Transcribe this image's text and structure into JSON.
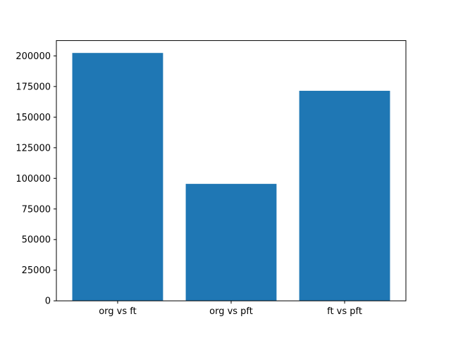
{
  "figure": {
    "background": "#ffffff"
  },
  "chart_data": {
    "type": "bar",
    "categories": [
      "org vs ft",
      "org vs pft",
      "ft vs pft"
    ],
    "values": [
      202400,
      95500,
      171500
    ],
    "title": "",
    "xlabel": "",
    "ylabel": "",
    "ylim": [
      0,
      212520
    ],
    "yticks": [
      0,
      25000,
      50000,
      75000,
      100000,
      125000,
      150000,
      175000,
      200000
    ],
    "bar_color": "#1f77b4",
    "axis_color": "#000000",
    "tick_label_color": "#000000",
    "grid": false,
    "legend": "none",
    "bar_width_fraction": 0.8
  }
}
